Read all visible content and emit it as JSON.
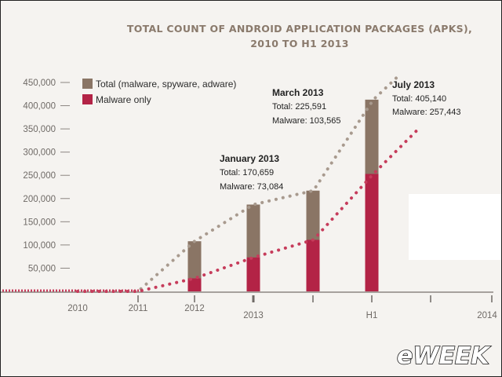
{
  "chart_data": {
    "type": "bar",
    "title_lines": [
      "TOTAL COUNT OF ANDROID APPLICATION PACKAGES (APKS),",
      "2010 TO H1 2013"
    ],
    "categories": [
      "2012",
      "2013",
      "",
      "H1"
    ],
    "series": [
      {
        "name": "Total (malware, spyware, adware)",
        "color": "#8a7565",
        "values": [
          108000,
          187000,
          217000,
          413000
        ]
      },
      {
        "name": "Malware only",
        "color": "#b32346",
        "values": [
          28000,
          73084,
          111000,
          253000
        ]
      }
    ],
    "trend_total": [
      [
        2010.0,
        0
      ],
      [
        2011.0,
        0
      ],
      [
        2012.0,
        108000
      ],
      [
        2013.0,
        187000
      ],
      [
        2013.5,
        217000
      ],
      [
        2014.0,
        413000
      ],
      [
        2014.22,
        467000
      ]
    ],
    "trend_malware": [
      [
        2010.0,
        0
      ],
      [
        2011.0,
        0
      ],
      [
        2012.0,
        28000
      ],
      [
        2013.0,
        73084
      ],
      [
        2013.5,
        111000
      ],
      [
        2014.0,
        253000
      ],
      [
        2014.38,
        351000
      ]
    ],
    "ylim": [
      0,
      450000
    ],
    "y_ticks": [
      "450,000",
      "400,000",
      "350,000",
      "300,000",
      "250,000",
      "200,000",
      "150,000",
      "100,000",
      "50,000"
    ],
    "x_tick_labels": [
      "2010",
      "2011",
      "2012",
      "2013",
      "H1",
      "2014"
    ],
    "legend_position": "top-left",
    "grid": false
  },
  "annotations": [
    {
      "head": "January 2013",
      "line1": "Total: 170,659",
      "line2": "Malware: 73,084"
    },
    {
      "head": "March 2013",
      "line1": "Total: 225,591",
      "line2": "Malware: 103,565"
    },
    {
      "head": "July 2013",
      "line1": "Total: 405,140",
      "line2": "Malware: 257,443"
    }
  ],
  "logo_text": "eWEEK",
  "colors": {
    "total": "#8a7565",
    "malware": "#b32346",
    "trend_total": "#a89a8e",
    "trend_malware": "#c63c5b",
    "background": "#f5f3f0"
  }
}
